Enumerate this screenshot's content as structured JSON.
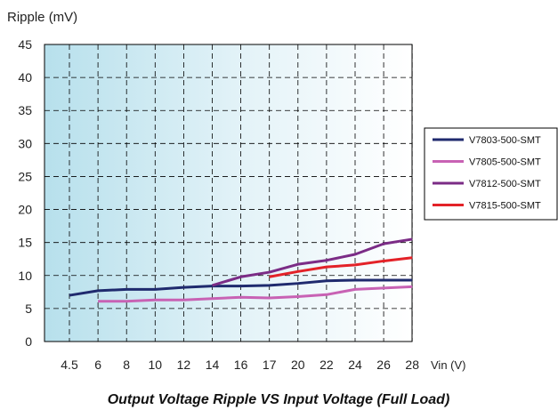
{
  "chart_data": {
    "type": "line",
    "title": "",
    "ylabel": "Ripple (mV)",
    "xlabel": "Vin (V)",
    "caption": "Output Voltage Ripple VS Input Voltage (Full Load)",
    "categories": [
      "4.5",
      "6",
      "8",
      "10",
      "12",
      "14",
      "16",
      "17",
      "20",
      "22",
      "24",
      "26",
      "28"
    ],
    "y_ticks": [
      0,
      5,
      10,
      15,
      20,
      25,
      30,
      35,
      40,
      45
    ],
    "ylim": [
      0,
      45
    ],
    "grid": true,
    "legend_position": "right",
    "series": [
      {
        "name": "V7803-500-SMT",
        "color": "#1f2a6e",
        "values": [
          7.0,
          7.7,
          7.9,
          7.9,
          8.2,
          8.4,
          8.4,
          8.5,
          8.8,
          9.2,
          9.3,
          9.3,
          9.3
        ]
      },
      {
        "name": "V7805-500-SMT",
        "color": "#c862b4",
        "values": [
          null,
          6.1,
          6.1,
          6.3,
          6.3,
          6.5,
          6.7,
          6.6,
          6.8,
          7.1,
          7.9,
          8.1,
          8.3
        ]
      },
      {
        "name": "V7812-500-SMT",
        "color": "#7b2c86",
        "values": [
          null,
          null,
          null,
          null,
          null,
          8.5,
          9.8,
          10.5,
          11.7,
          12.3,
          13.2,
          14.8,
          15.5
        ]
      },
      {
        "name": "V7815-500-SMT",
        "color": "#e32228",
        "values": [
          null,
          null,
          null,
          null,
          null,
          null,
          null,
          9.8,
          10.6,
          11.3,
          11.6,
          12.2,
          12.7
        ]
      }
    ]
  }
}
